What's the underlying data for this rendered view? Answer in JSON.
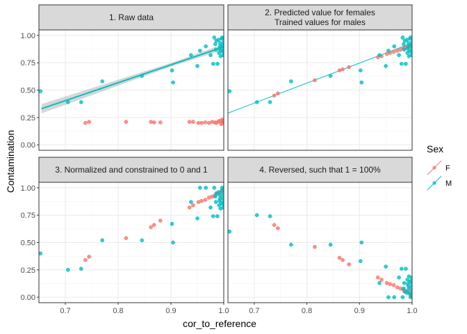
{
  "chart_data": {
    "type": "scatter",
    "xlabel": "cor_to_reference",
    "ylabel": "Contamination",
    "xlim": [
      0.65,
      1.0
    ],
    "ylim": [
      -0.05,
      1.05
    ],
    "x_ticks": [
      0.7,
      0.8,
      0.9,
      1.0
    ],
    "x_tick_labels": [
      "0.7",
      "0.8",
      "0.9",
      "1.0"
    ],
    "y_ticks": [
      0.0,
      0.25,
      0.5,
      0.75,
      1.0
    ],
    "y_tick_labels": [
      "0.00",
      "0.25",
      "0.50",
      "0.75",
      "1.00"
    ],
    "grid": true,
    "legend": {
      "title": "Sex",
      "position": "right",
      "entries": [
        {
          "label": "F",
          "color": "#F8766D"
        },
        {
          "label": "M",
          "color": "#00BFC4"
        }
      ]
    },
    "colors": {
      "F": "#F8766D",
      "M": "#00BFC4",
      "ribbon": "#999999"
    },
    "panels": [
      {
        "title": "1. Raw data",
        "series": [
          {
            "name": "F",
            "x": [
              0.738,
              0.745,
              0.815,
              0.862,
              0.868,
              0.88,
              0.935,
              0.942,
              0.952,
              0.958,
              0.965,
              0.972,
              0.978,
              0.983,
              0.986,
              0.989,
              0.992,
              0.995,
              0.996,
              0.997,
              0.998,
              0.999
            ],
            "y": [
              0.2,
              0.21,
              0.21,
              0.21,
              0.205,
              0.205,
              0.21,
              0.21,
              0.2,
              0.2,
              0.205,
              0.2,
              0.21,
              0.205,
              0.2,
              0.21,
              0.22,
              0.19,
              0.21,
              0.23,
              0.2,
              0.22
            ]
          },
          {
            "name": "M",
            "x": [
              0.653,
              0.705,
              0.73,
              0.77,
              0.845,
              0.902,
              0.904,
              0.938,
              0.95,
              0.955,
              0.966,
              0.975,
              0.98,
              0.982,
              0.984,
              0.985,
              0.986,
              0.988,
              0.99,
              0.991,
              0.992,
              0.993,
              0.994,
              0.995,
              0.996,
              0.997,
              0.998,
              0.999,
              1.0,
              1.0,
              0.997,
              0.993
            ],
            "y": [
              0.49,
              0.39,
              0.39,
              0.58,
              0.63,
              0.68,
              0.57,
              0.82,
              0.72,
              0.86,
              0.9,
              0.82,
              0.74,
              0.98,
              0.92,
              0.87,
              0.95,
              0.74,
              0.96,
              0.84,
              0.88,
              0.93,
              0.81,
              0.86,
              0.97,
              0.91,
              0.85,
              0.82,
              0.94,
              0.88,
              0.98,
              0.9
            ]
          }
        ],
        "fit": {
          "x": [
            0.655,
            1.0
          ],
          "y": [
            0.33,
            0.895
          ],
          "se_width": 0.03
        }
      },
      {
        "title": "2. Predicted value for females\nTrained values for males",
        "series": [
          {
            "name": "F",
            "x": [
              0.738,
              0.745,
              0.815,
              0.862,
              0.868,
              0.88,
              0.935,
              0.942,
              0.952,
              0.958,
              0.965,
              0.972,
              0.978,
              0.983,
              0.986,
              0.989,
              0.992,
              0.995,
              0.996,
              0.997,
              0.998,
              0.999
            ],
            "y": [
              0.45,
              0.47,
              0.59,
              0.68,
              0.69,
              0.71,
              0.8,
              0.81,
              0.83,
              0.84,
              0.85,
              0.86,
              0.87,
              0.88,
              0.885,
              0.89,
              0.895,
              0.9,
              0.905,
              0.91,
              0.91,
              0.915
            ]
          },
          {
            "name": "M",
            "x": [
              0.653,
              0.705,
              0.73,
              0.77,
              0.845,
              0.902,
              0.904,
              0.938,
              0.95,
              0.955,
              0.966,
              0.975,
              0.98,
              0.982,
              0.984,
              0.985,
              0.986,
              0.988,
              0.99,
              0.991,
              0.992,
              0.993,
              0.994,
              0.995,
              0.996,
              0.997,
              0.998,
              0.999,
              1.0,
              1.0,
              0.997,
              0.993
            ],
            "y": [
              0.49,
              0.39,
              0.39,
              0.58,
              0.63,
              0.68,
              0.57,
              0.82,
              0.72,
              0.86,
              0.9,
              0.82,
              0.74,
              0.98,
              0.92,
              0.87,
              0.95,
              0.74,
              0.96,
              0.84,
              0.88,
              0.93,
              0.81,
              0.86,
              0.97,
              0.91,
              0.85,
              0.82,
              0.94,
              0.88,
              0.98,
              0.9
            ]
          }
        ],
        "fit_line": {
          "x": [
            0.65,
            1.0
          ],
          "y": [
            0.29,
            0.93
          ]
        }
      },
      {
        "title": "3. Normalized and constrained to 0 and 1",
        "series": [
          {
            "name": "F",
            "x": [
              0.738,
              0.745,
              0.815,
              0.862,
              0.868,
              0.88,
              0.935,
              0.942,
              0.952,
              0.958,
              0.965,
              0.972,
              0.978,
              0.983,
              0.986,
              0.989,
              0.992,
              0.995,
              0.996,
              0.997,
              0.998,
              0.999
            ],
            "y": [
              0.34,
              0.37,
              0.54,
              0.64,
              0.66,
              0.7,
              0.82,
              0.84,
              0.87,
              0.88,
              0.89,
              0.91,
              0.92,
              0.93,
              0.94,
              0.95,
              0.95,
              0.96,
              0.97,
              0.98,
              0.98,
              0.99
            ]
          },
          {
            "name": "M",
            "x": [
              0.653,
              0.705,
              0.73,
              0.77,
              0.845,
              0.902,
              0.904,
              0.938,
              0.95,
              0.955,
              0.966,
              0.975,
              0.98,
              0.982,
              0.984,
              0.985,
              0.986,
              0.988,
              0.99,
              0.991,
              0.992,
              0.993,
              0.994,
              0.995,
              0.996,
              0.997,
              0.998,
              0.999,
              1.0,
              1.0,
              0.997,
              0.993
            ],
            "y": [
              0.4,
              0.25,
              0.26,
              0.52,
              0.52,
              0.67,
              0.5,
              0.87,
              0.72,
              1.0,
              1.0,
              0.82,
              0.74,
              1.0,
              0.92,
              0.87,
              0.95,
              0.74,
              0.96,
              0.84,
              0.88,
              0.93,
              0.81,
              0.86,
              0.97,
              0.91,
              0.85,
              0.82,
              0.94,
              0.88,
              1.0,
              0.9
            ]
          }
        ]
      },
      {
        "title": "4. Reversed, such that 1 = 100%",
        "series": [
          {
            "name": "F",
            "x": [
              0.738,
              0.745,
              0.815,
              0.862,
              0.868,
              0.88,
              0.935,
              0.942,
              0.952,
              0.958,
              0.965,
              0.972,
              0.978,
              0.983,
              0.986,
              0.989,
              0.992,
              0.995,
              0.996,
              0.997,
              0.998,
              0.999
            ],
            "y": [
              0.66,
              0.63,
              0.46,
              0.36,
              0.34,
              0.3,
              0.18,
              0.16,
              0.13,
              0.12,
              0.11,
              0.09,
              0.08,
              0.07,
              0.06,
              0.05,
              0.05,
              0.04,
              0.03,
              0.02,
              0.02,
              0.01
            ]
          },
          {
            "name": "M",
            "x": [
              0.653,
              0.705,
              0.73,
              0.77,
              0.845,
              0.902,
              0.904,
              0.938,
              0.95,
              0.955,
              0.966,
              0.975,
              0.98,
              0.982,
              0.984,
              0.985,
              0.986,
              0.988,
              0.99,
              0.991,
              0.992,
              0.993,
              0.994,
              0.995,
              0.996,
              0.997,
              0.998,
              0.999,
              1.0,
              1.0,
              0.997,
              0.993
            ],
            "y": [
              0.6,
              0.75,
              0.74,
              0.48,
              0.48,
              0.33,
              0.5,
              0.13,
              0.28,
              0.0,
              0.0,
              0.18,
              0.26,
              0.0,
              0.08,
              0.13,
              0.05,
              0.26,
              0.04,
              0.16,
              0.12,
              0.07,
              0.19,
              0.14,
              0.03,
              0.09,
              0.15,
              0.18,
              0.06,
              0.12,
              0.0,
              0.1
            ]
          }
        ]
      }
    ]
  }
}
